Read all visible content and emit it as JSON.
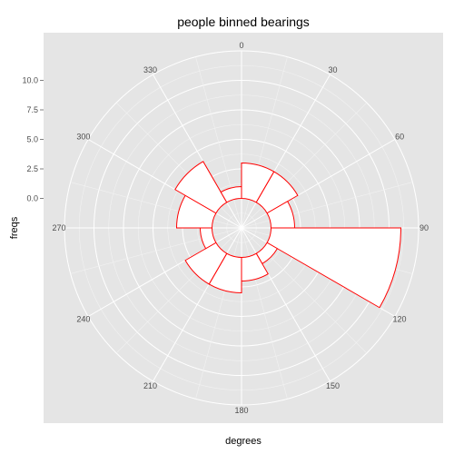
{
  "chart_data": {
    "type": "polar-bar",
    "title": "people binned bearings",
    "xlabel": "degrees",
    "ylabel": "freqs",
    "bin_width": 30,
    "angle_ticks": [
      "0",
      "30",
      "60",
      "90",
      "120",
      "150",
      "180",
      "210",
      "240",
      "270",
      "300",
      "330"
    ],
    "radial_ticks": [
      "0.0",
      "2.5",
      "5.0",
      "7.5",
      "10.0"
    ],
    "radial_range": [
      -2.5,
      12.5
    ],
    "bins": [
      0,
      30,
      60,
      90,
      120,
      150,
      180,
      210,
      240,
      270,
      300,
      330
    ],
    "values": [
      3,
      3,
      2,
      11,
      1,
      2,
      3,
      3,
      1,
      3,
      4,
      1
    ],
    "grid": true,
    "colors": {
      "panel_bg": "#e5e5e5",
      "grid": "#ffffff",
      "bar_fill": "#ffffff",
      "bar_stroke": "#ff0000"
    }
  }
}
